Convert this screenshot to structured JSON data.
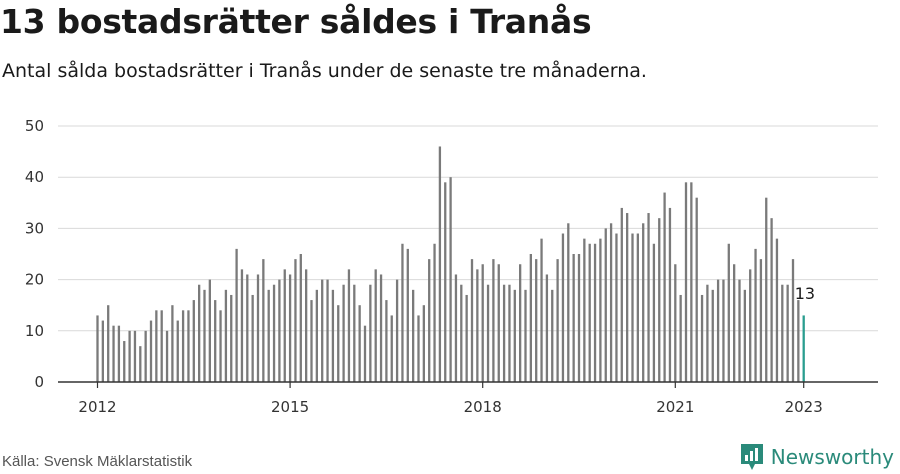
{
  "header": {
    "title": "13 bostadsrätter såldes i Tranås",
    "subtitle": "Antal sålda bostadsrätter i Tranås under de senaste tre månaderna."
  },
  "footer": {
    "source": "Källa: Svensk Mäklarstatistik",
    "brand": "Newsworthy"
  },
  "colors": {
    "bar": "#7a7a7a",
    "highlight": "#2a9d8f",
    "grid": "#d9d9d9",
    "axis": "#333333",
    "brand": "#2a8a7a"
  },
  "chart_data": {
    "type": "bar",
    "title": "",
    "xlabel": "",
    "ylabel": "",
    "ylim": [
      0,
      50
    ],
    "yticks": [
      0,
      10,
      20,
      30,
      40,
      50
    ],
    "x_tick_labels": [
      "2012",
      "2015",
      "2018",
      "2021",
      "2023"
    ],
    "grid": true,
    "start_label": "2012-01",
    "end_label": "2023-01",
    "values": [
      13,
      12,
      15,
      11,
      11,
      8,
      10,
      10,
      7,
      10,
      12,
      14,
      14,
      10,
      15,
      12,
      14,
      14,
      16,
      19,
      18,
      20,
      16,
      14,
      18,
      17,
      26,
      22,
      21,
      17,
      21,
      24,
      18,
      19,
      20,
      22,
      21,
      24,
      25,
      22,
      16,
      18,
      20,
      20,
      18,
      15,
      19,
      22,
      19,
      15,
      11,
      19,
      22,
      21,
      16,
      13,
      20,
      27,
      26,
      18,
      13,
      15,
      24,
      27,
      46,
      39,
      40,
      21,
      19,
      17,
      24,
      22,
      23,
      19,
      24,
      23,
      19,
      19,
      18,
      23,
      18,
      25,
      24,
      28,
      21,
      18,
      24,
      29,
      31,
      25,
      25,
      28,
      27,
      27,
      28,
      30,
      31,
      29,
      34,
      33,
      29,
      29,
      31,
      33,
      27,
      32,
      37,
      34,
      23,
      17,
      39,
      39,
      36,
      17,
      19,
      18,
      20,
      20,
      27,
      23,
      20,
      18,
      22,
      26,
      24,
      36,
      32,
      28,
      19,
      19,
      24,
      16,
      13
    ],
    "highlight_last": true,
    "annotation": "13"
  }
}
